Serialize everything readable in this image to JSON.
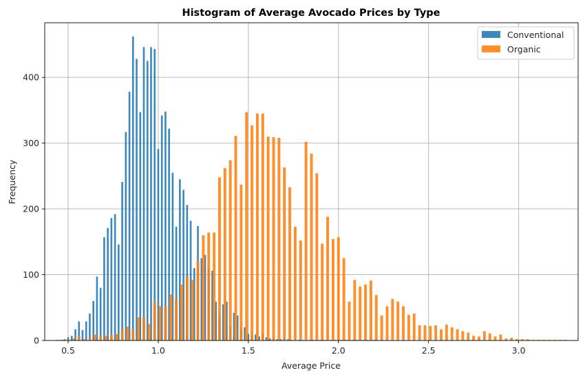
{
  "chart_data": {
    "type": "bar",
    "title": "Histogram of Average Avocado Prices by Type",
    "xlabel": "Average Price",
    "ylabel": "Frequency",
    "xlim": [
      0.37,
      3.33
    ],
    "ylim": [
      0,
      483
    ],
    "xticks": [
      0.5,
      1.0,
      1.5,
      2.0,
      2.5,
      3.0
    ],
    "xtick_labels": [
      "0.5",
      "1.0",
      "1.5",
      "2.0",
      "2.5",
      "3.0"
    ],
    "yticks": [
      0,
      100,
      200,
      300,
      400
    ],
    "ytick_labels": [
      "0",
      "100",
      "200",
      "300",
      "400"
    ],
    "grid": true,
    "legend_position": "top-right",
    "series": [
      {
        "name": "Conventional",
        "color": "#1f77b4",
        "x": [
          0.46,
          0.48,
          0.5,
          0.52,
          0.54,
          0.56,
          0.58,
          0.6,
          0.62,
          0.64,
          0.66,
          0.68,
          0.7,
          0.72,
          0.74,
          0.76,
          0.78,
          0.8,
          0.82,
          0.84,
          0.86,
          0.88,
          0.9,
          0.92,
          0.94,
          0.96,
          0.98,
          1.0,
          1.02,
          1.04,
          1.06,
          1.08,
          1.1,
          1.12,
          1.14,
          1.16,
          1.18,
          1.2,
          1.22,
          1.24,
          1.26,
          1.28,
          1.3,
          1.32,
          1.34,
          1.36,
          1.38,
          1.4,
          1.42,
          1.44,
          1.46,
          1.48,
          1.5,
          1.52,
          1.54,
          1.56,
          1.58,
          1.6,
          1.62,
          1.64,
          1.66,
          1.68,
          1.7,
          1.72,
          1.74,
          1.76,
          1.78,
          1.8,
          1.82,
          1.84,
          1.86,
          1.88,
          1.9,
          1.92,
          1.94,
          1.96,
          1.98,
          2.0,
          2.02,
          2.04,
          2.06,
          2.08,
          2.1,
          2.12,
          2.14,
          2.16,
          2.18,
          2.2
        ],
        "values": [
          1,
          2,
          5,
          7,
          17,
          29,
          16,
          29,
          41,
          60,
          97,
          80,
          157,
          171,
          186,
          192,
          146,
          241,
          317,
          378,
          462,
          428,
          347,
          446,
          425,
          446,
          443,
          291,
          342,
          348,
          322,
          255,
          173,
          245,
          229,
          206,
          182,
          110,
          174,
          125,
          130,
          110,
          106,
          59,
          39,
          55,
          59,
          22,
          42,
          38,
          18,
          20,
          10,
          8,
          9,
          6,
          10,
          5,
          3,
          4,
          2,
          2,
          3,
          2,
          1,
          1,
          1,
          1,
          1,
          1,
          1,
          1,
          1,
          1,
          1,
          1,
          1,
          1,
          1,
          1,
          1,
          1,
          1,
          1,
          1,
          1,
          1,
          1
        ]
      },
      {
        "name": "Organic",
        "color": "#ff7f0e",
        "x": [
          0.44,
          0.47,
          0.5,
          0.53,
          0.56,
          0.59,
          0.62,
          0.65,
          0.68,
          0.71,
          0.74,
          0.77,
          0.8,
          0.83,
          0.86,
          0.89,
          0.92,
          0.95,
          0.98,
          1.01,
          1.04,
          1.07,
          1.1,
          1.13,
          1.16,
          1.19,
          1.22,
          1.25,
          1.28,
          1.31,
          1.34,
          1.37,
          1.4,
          1.43,
          1.46,
          1.49,
          1.52,
          1.55,
          1.58,
          1.61,
          1.64,
          1.67,
          1.7,
          1.73,
          1.76,
          1.79,
          1.82,
          1.85,
          1.88,
          1.91,
          1.94,
          1.97,
          2.0,
          2.03,
          2.06,
          2.09,
          2.12,
          2.15,
          2.18,
          2.21,
          2.24,
          2.27,
          2.3,
          2.33,
          2.36,
          2.39,
          2.42,
          2.45,
          2.48,
          2.51,
          2.54,
          2.57,
          2.6,
          2.63,
          2.66,
          2.69,
          2.72,
          2.75,
          2.78,
          2.81,
          2.84,
          2.87,
          2.9,
          2.93,
          2.96,
          2.99,
          3.02,
          3.05,
          3.08,
          3.11,
          3.14,
          3.17,
          3.2,
          3.23,
          3.26
        ],
        "values": [
          1,
          1,
          2,
          3,
          7,
          2,
          4,
          9,
          7,
          7,
          9,
          10,
          17,
          21,
          16,
          35,
          35,
          25,
          59,
          52,
          52,
          70,
          63,
          85,
          97,
          92,
          121,
          160,
          164,
          164,
          248,
          262,
          274,
          311,
          237,
          347,
          327,
          345,
          345,
          310,
          309,
          308,
          263,
          233,
          173,
          152,
          302,
          284,
          254,
          147,
          188,
          154,
          157,
          125,
          59,
          92,
          82,
          85,
          91,
          69,
          38,
          52,
          63,
          59,
          52,
          39,
          41,
          23,
          23,
          22,
          23,
          17,
          24,
          20,
          17,
          14,
          12,
          7,
          6,
          14,
          11,
          6,
          9,
          3,
          4,
          2,
          2,
          2,
          1,
          1,
          1,
          1,
          1,
          1,
          1
        ]
      }
    ]
  }
}
